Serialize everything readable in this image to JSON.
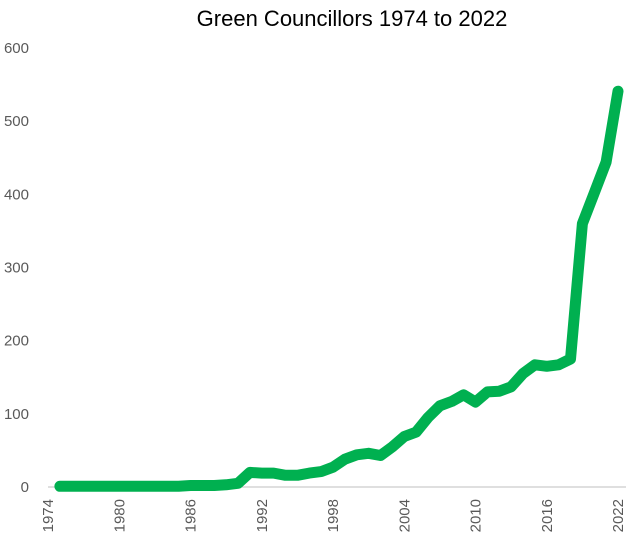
{
  "chart_data": {
    "type": "line",
    "title": "Green Councillors 1974 to 2022",
    "xlabel": "",
    "ylabel": "",
    "xlim": [
      1974,
      2022
    ],
    "ylim": [
      0,
      600
    ],
    "x_ticks": [
      "1974",
      "1980",
      "1986",
      "1992",
      "1998",
      "2004",
      "2010",
      "2016",
      "2022"
    ],
    "y_ticks": [
      "0",
      "100",
      "200",
      "300",
      "400",
      "500",
      "600"
    ],
    "grid": false,
    "legend": "none",
    "colors": {
      "series": "#00b050",
      "axis": "#bfbfbf",
      "tick_text": "#595959"
    },
    "series": [
      {
        "x": [
          1975,
          1976,
          1977,
          1978,
          1979,
          1980,
          1981,
          1982,
          1983,
          1984,
          1985,
          1986,
          1987,
          1988,
          1989,
          1990,
          1991,
          1992,
          1993,
          1994,
          1995,
          1996,
          1997,
          1998,
          1999,
          2000,
          2001,
          2002,
          2003,
          2004,
          2005,
          2006,
          2007,
          2008,
          2009,
          2010,
          2011,
          2012,
          2013,
          2014,
          2015,
          2016,
          2017,
          2018,
          2019,
          2020,
          2021,
          2022
        ],
        "values": [
          1,
          1,
          1,
          1,
          1,
          1,
          1,
          1,
          1,
          1,
          1,
          2,
          2,
          2,
          3,
          5,
          20,
          19,
          19,
          16,
          16,
          19,
          21,
          27,
          38,
          44,
          46,
          43,
          55,
          69,
          75,
          95,
          111,
          117,
          126,
          116,
          130,
          131,
          137,
          155,
          167,
          165,
          167,
          175,
          360,
          402,
          444,
          541
        ]
      }
    ]
  }
}
